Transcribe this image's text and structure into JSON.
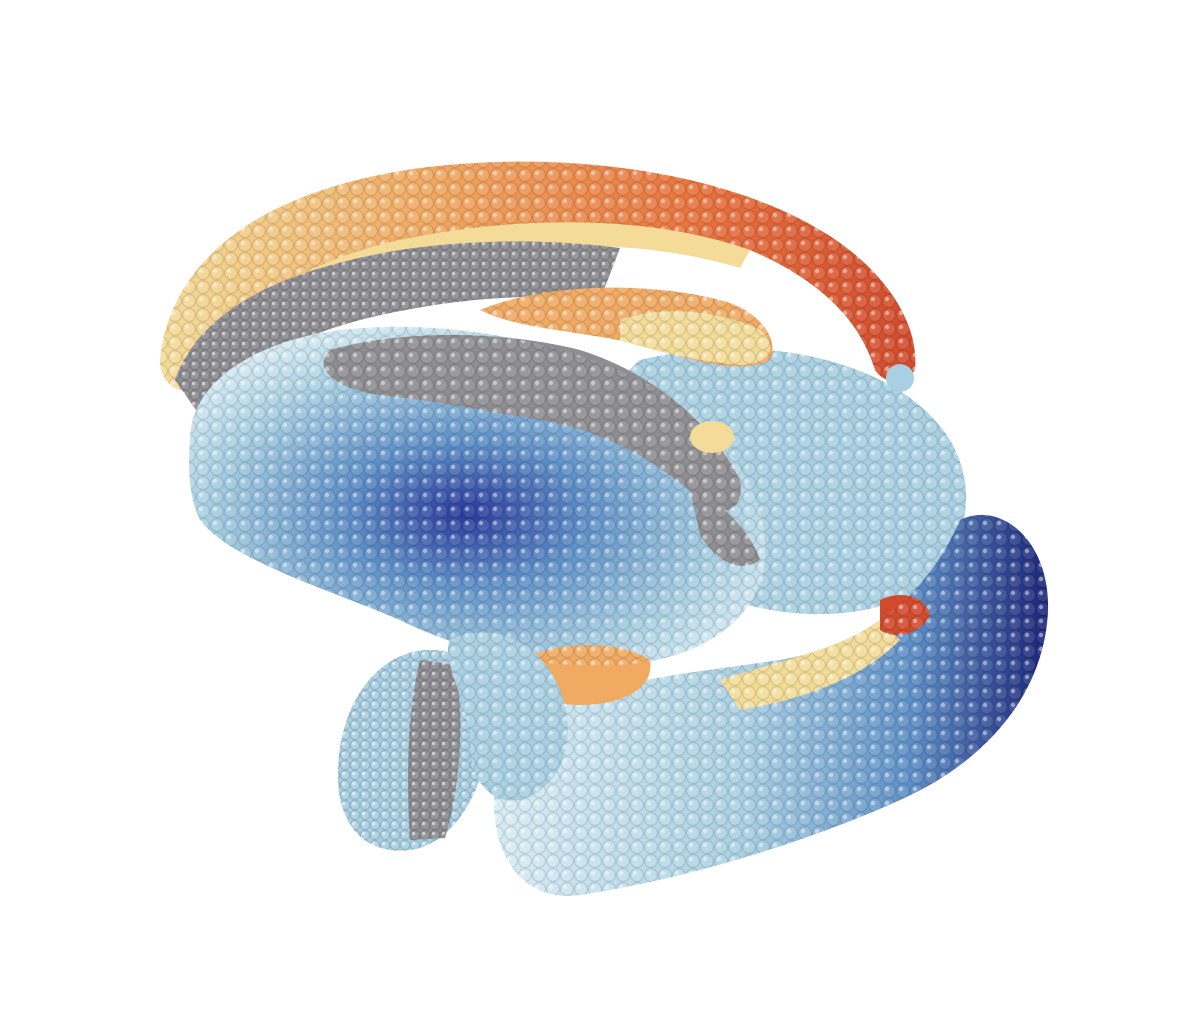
{
  "image": {
    "subject": "sphere-cluster-3d-rendering",
    "background_color": "#ffffff",
    "palette": {
      "grey": "#8e8e92",
      "grey_light": "#c4c4c8",
      "light_blue": "#a9d0e2",
      "pale_blue": "#d8ecf4",
      "mid_blue": "#5d8fc6",
      "deep_blue": "#27389a",
      "navy": "#1b2478",
      "pale_yellow": "#f4dc98",
      "light_orange": "#f0aa62",
      "orange": "#e9743d",
      "red": "#d24a2c"
    }
  }
}
